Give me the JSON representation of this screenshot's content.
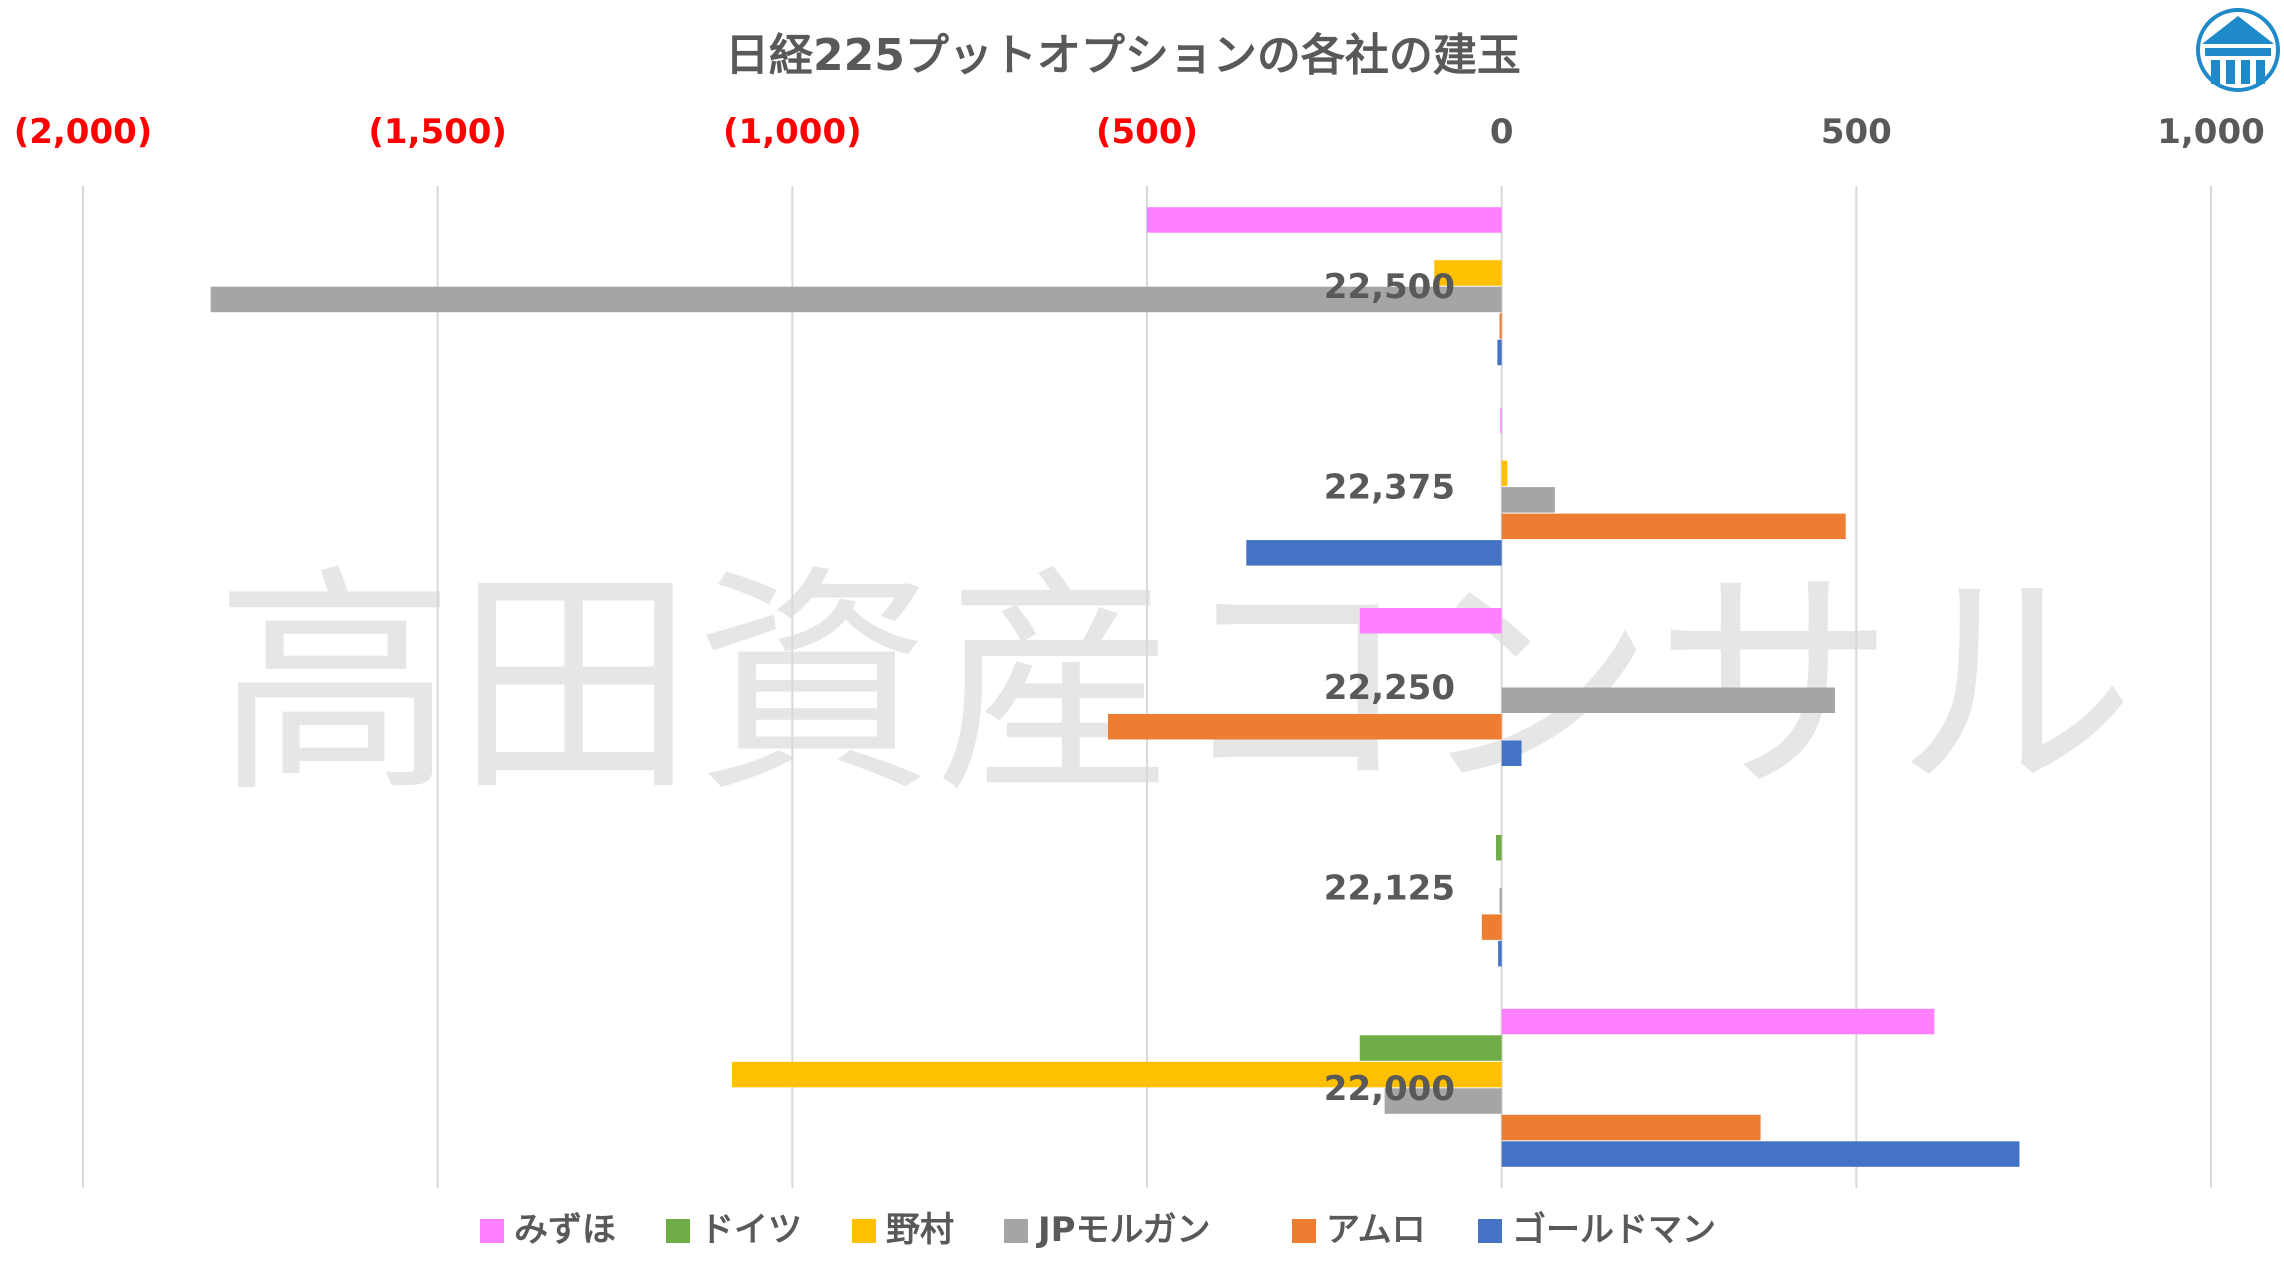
{
  "watermark": "高田資産コンサル",
  "logo": {
    "name": "building-logo",
    "color": "#1f8ac9"
  },
  "colors": {
    "negative_tick": "#ff0000",
    "positive_tick": "#595959",
    "grid": "#d9d9d9"
  },
  "chart_data": {
    "type": "bar",
    "orientation": "horizontal",
    "title": "日経225プットオプションの各社の建玉",
    "xlim": [
      -2000,
      1000
    ],
    "x_ticks": [
      {
        "value": -2000,
        "label": "(2,000)"
      },
      {
        "value": -1500,
        "label": "(1,500)"
      },
      {
        "value": -1000,
        "label": "(1,000)"
      },
      {
        "value": -500,
        "label": "(500)"
      },
      {
        "value": 0,
        "label": "0"
      },
      {
        "value": 500,
        "label": "500"
      },
      {
        "value": 1000,
        "label": "1,000"
      }
    ],
    "grid": true,
    "legend_position": "bottom",
    "categories": [
      "22,500",
      "22,375",
      "22,250",
      "22,125",
      "22,000"
    ],
    "series": [
      {
        "name": "みずほ",
        "color": "#ff80ff",
        "values": [
          -500,
          -2,
          -200,
          0,
          610
        ]
      },
      {
        "name": "ドイツ",
        "color": "#70ad47",
        "values": [
          0,
          0,
          0,
          -8,
          -200
        ]
      },
      {
        "name": "野村",
        "color": "#ffc000",
        "values": [
          -95,
          8,
          0,
          0,
          -1085
        ]
      },
      {
        "name": "JPモルガン",
        "color": "#a5a5a5",
        "values": [
          -1820,
          75,
          470,
          -3,
          -165
        ]
      },
      {
        "name": "アムロ",
        "color": "#ed7d31",
        "values": [
          -3,
          485,
          -555,
          -28,
          365
        ]
      },
      {
        "name": "ゴールドマン",
        "color": "#4472c4",
        "values": [
          -6,
          -360,
          28,
          -5,
          730
        ]
      }
    ]
  }
}
